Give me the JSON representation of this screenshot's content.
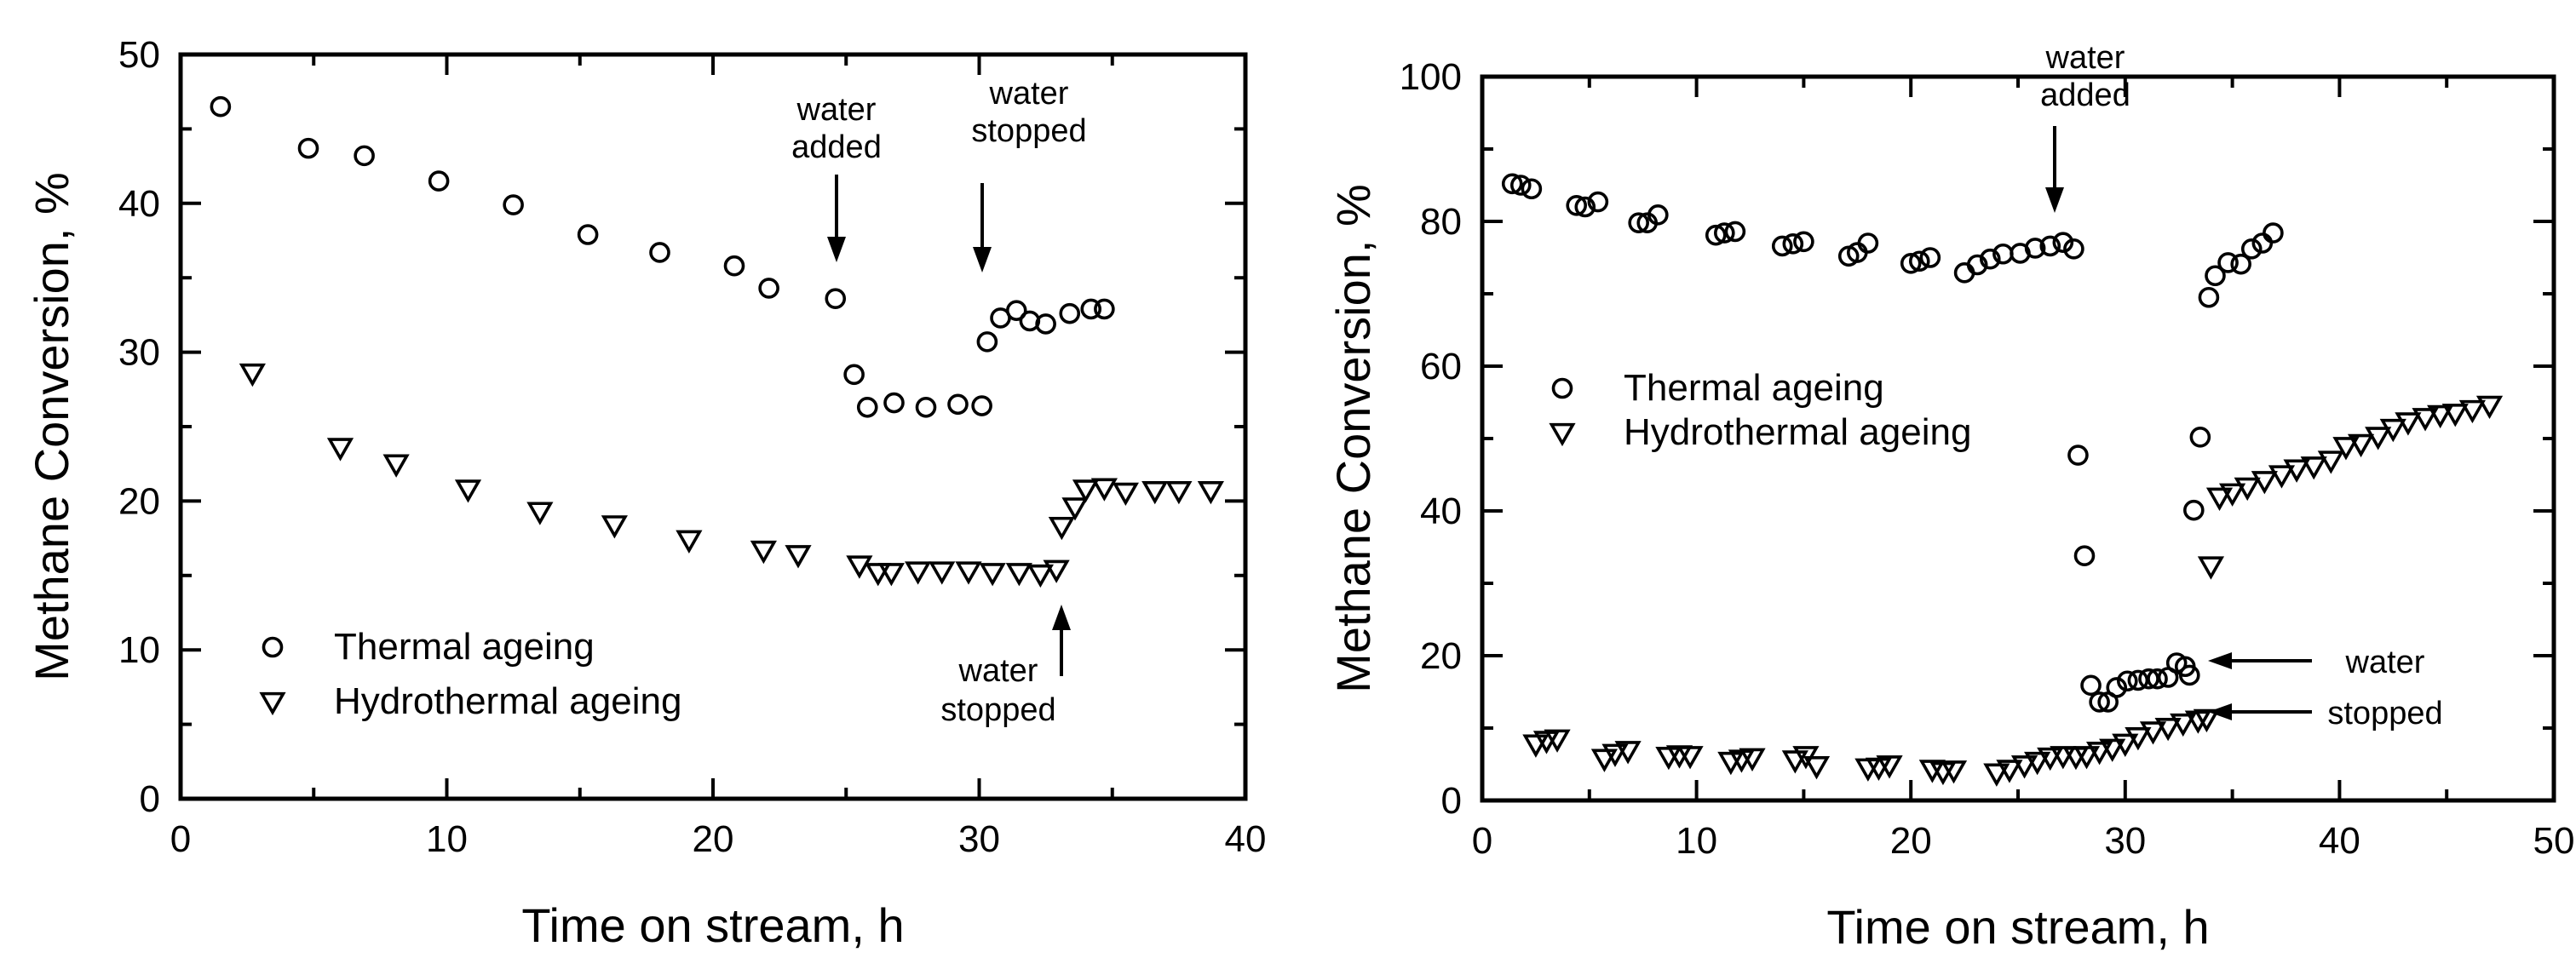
{
  "chart_data": [
    {
      "type": "scatter",
      "xlabel": "Time on stream, h",
      "ylabel": "Methane Conversion, %",
      "xlim": [
        0,
        40
      ],
      "ylim": [
        0,
        50
      ],
      "xticks": [
        0,
        10,
        20,
        30,
        40
      ],
      "yticks": [
        0,
        10,
        20,
        30,
        40,
        50
      ],
      "legend_position": "bottom-left",
      "series": [
        {
          "name": "Thermal ageing",
          "marker": "circle",
          "points": [
            [
              1.5,
              46.5
            ],
            [
              4.8,
              43.7
            ],
            [
              6.9,
              43.2
            ],
            [
              9.7,
              41.5
            ],
            [
              12.5,
              39.9
            ],
            [
              15.3,
              37.9
            ],
            [
              18.0,
              36.7
            ],
            [
              20.8,
              35.8
            ],
            [
              22.1,
              34.3
            ],
            [
              24.6,
              33.6
            ],
            [
              25.3,
              28.5
            ],
            [
              25.8,
              26.3
            ],
            [
              26.8,
              26.6
            ],
            [
              28.0,
              26.3
            ],
            [
              29.2,
              26.5
            ],
            [
              30.1,
              26.4
            ],
            [
              30.3,
              30.7
            ],
            [
              30.8,
              32.3
            ],
            [
              31.4,
              32.8
            ],
            [
              31.9,
              32.1
            ],
            [
              32.5,
              31.9
            ],
            [
              33.4,
              32.6
            ],
            [
              34.2,
              32.9
            ],
            [
              34.7,
              32.9
            ]
          ]
        },
        {
          "name": "Hydrothermal ageing",
          "marker": "triangle-down",
          "points": [
            [
              2.7,
              28.6
            ],
            [
              6.0,
              23.6
            ],
            [
              8.1,
              22.5
            ],
            [
              10.8,
              20.8
            ],
            [
              13.5,
              19.3
            ],
            [
              16.3,
              18.4
            ],
            [
              19.1,
              17.4
            ],
            [
              21.9,
              16.7
            ],
            [
              23.2,
              16.4
            ],
            [
              25.5,
              15.7
            ],
            [
              26.2,
              15.2
            ],
            [
              26.7,
              15.2
            ],
            [
              27.7,
              15.3
            ],
            [
              28.6,
              15.3
            ],
            [
              29.6,
              15.3
            ],
            [
              30.5,
              15.2
            ],
            [
              31.5,
              15.2
            ],
            [
              32.3,
              15.1
            ],
            [
              32.9,
              15.4
            ],
            [
              33.1,
              18.3
            ],
            [
              33.6,
              19.6
            ],
            [
              34.0,
              20.8
            ],
            [
              34.7,
              20.9
            ],
            [
              35.5,
              20.6
            ],
            [
              36.6,
              20.7
            ],
            [
              37.5,
              20.7
            ],
            [
              38.7,
              20.7
            ]
          ]
        }
      ],
      "annotations": [
        {
          "text": "water\nadded",
          "arrow": "down",
          "x": 24.6,
          "y": 33.6
        },
        {
          "text": "water\nstopped",
          "arrow": "down",
          "x": 30.1,
          "y": 26.4
        },
        {
          "text": "water\nstopped",
          "arrow": "up",
          "x": 32.9,
          "y": 15.4
        }
      ]
    },
    {
      "type": "scatter",
      "xlabel": "Time on stream, h",
      "ylabel": "Methane Conversion, %",
      "xlim": [
        0,
        50
      ],
      "ylim": [
        0,
        100
      ],
      "xticks": [
        0,
        10,
        20,
        30,
        40,
        50
      ],
      "yticks": [
        0,
        20,
        40,
        60,
        80,
        100
      ],
      "legend_position": "middle-left",
      "series": [
        {
          "name": "Thermal ageing",
          "marker": "circle",
          "points": [
            [
              1.4,
              85.2
            ],
            [
              1.8,
              85.0
            ],
            [
              2.3,
              84.5
            ],
            [
              4.4,
              82.2
            ],
            [
              4.8,
              82.0
            ],
            [
              5.4,
              82.7
            ],
            [
              7.3,
              79.8
            ],
            [
              7.7,
              79.8
            ],
            [
              8.2,
              80.9
            ],
            [
              10.9,
              78.1
            ],
            [
              11.3,
              78.4
            ],
            [
              11.8,
              78.6
            ],
            [
              14.0,
              76.6
            ],
            [
              14.5,
              76.9
            ],
            [
              15.0,
              77.2
            ],
            [
              17.1,
              75.2
            ],
            [
              17.5,
              75.7
            ],
            [
              18.0,
              77.0
            ],
            [
              20.0,
              74.2
            ],
            [
              20.4,
              74.5
            ],
            [
              20.9,
              75.0
            ],
            [
              22.5,
              72.9
            ],
            [
              23.1,
              74.0
            ],
            [
              23.7,
              74.8
            ],
            [
              24.3,
              75.5
            ],
            [
              25.1,
              75.6
            ],
            [
              25.8,
              76.3
            ],
            [
              26.5,
              76.6
            ],
            [
              27.1,
              77.1
            ],
            [
              27.6,
              76.2
            ],
            [
              27.8,
              47.7
            ],
            [
              28.1,
              33.8
            ],
            [
              28.4,
              15.9
            ],
            [
              28.8,
              13.6
            ],
            [
              29.2,
              13.6
            ],
            [
              29.6,
              15.6
            ],
            [
              30.1,
              16.5
            ],
            [
              30.6,
              16.6
            ],
            [
              31.1,
              16.8
            ],
            [
              31.5,
              16.8
            ],
            [
              32.0,
              17.0
            ],
            [
              32.4,
              19.0
            ],
            [
              32.8,
              18.5
            ],
            [
              33.0,
              17.3
            ],
            [
              33.2,
              40.1
            ],
            [
              33.5,
              50.2
            ],
            [
              33.9,
              69.5
            ],
            [
              34.2,
              72.5
            ],
            [
              34.8,
              74.3
            ],
            [
              35.4,
              74.1
            ],
            [
              35.9,
              76.2
            ],
            [
              36.4,
              77.0
            ],
            [
              36.9,
              78.4
            ]
          ]
        },
        {
          "name": "Hydrothermal ageing",
          "marker": "triangle-down",
          "points": [
            [
              2.5,
              7.8
            ],
            [
              3.0,
              8.3
            ],
            [
              3.5,
              8.5
            ],
            [
              5.7,
              5.8
            ],
            [
              6.2,
              6.5
            ],
            [
              6.8,
              6.9
            ],
            [
              8.7,
              6.1
            ],
            [
              9.2,
              6.3
            ],
            [
              9.7,
              6.2
            ],
            [
              11.6,
              5.4
            ],
            [
              12.1,
              5.7
            ],
            [
              12.6,
              5.9
            ],
            [
              14.6,
              5.6
            ],
            [
              15.1,
              6.2
            ],
            [
              15.6,
              4.8
            ],
            [
              18.0,
              4.5
            ],
            [
              18.5,
              4.6
            ],
            [
              19.0,
              4.9
            ],
            [
              21.0,
              4.3
            ],
            [
              21.5,
              4.0
            ],
            [
              22.0,
              4.2
            ],
            [
              24.0,
              3.8
            ],
            [
              24.6,
              4.3
            ],
            [
              25.3,
              4.9
            ],
            [
              25.9,
              5.4
            ],
            [
              26.5,
              6.0
            ],
            [
              27.1,
              6.2
            ],
            [
              27.7,
              6.1
            ],
            [
              28.2,
              6.2
            ],
            [
              28.8,
              6.8
            ],
            [
              29.4,
              7.2
            ],
            [
              30.0,
              7.9
            ],
            [
              30.6,
              8.8
            ],
            [
              31.3,
              9.6
            ],
            [
              32.0,
              10.1
            ],
            [
              32.7,
              10.7
            ],
            [
              33.4,
              11.1
            ],
            [
              33.8,
              11.3
            ],
            [
              34.0,
              32.4
            ],
            [
              34.4,
              41.9
            ],
            [
              35.0,
              42.5
            ],
            [
              35.7,
              43.3
            ],
            [
              36.5,
              44.2
            ],
            [
              37.3,
              45.0
            ],
            [
              38.0,
              45.8
            ],
            [
              38.8,
              46.2
            ],
            [
              39.6,
              47.0
            ],
            [
              40.3,
              48.9
            ],
            [
              41.0,
              49.3
            ],
            [
              41.8,
              50.3
            ],
            [
              42.5,
              51.4
            ],
            [
              43.2,
              52.3
            ],
            [
              44.0,
              52.9
            ],
            [
              44.7,
              53.3
            ],
            [
              45.4,
              53.5
            ],
            [
              46.2,
              54.0
            ],
            [
              47.0,
              54.6
            ]
          ]
        }
      ],
      "annotations": [
        {
          "text": "water\nadded",
          "arrow": "down",
          "x": 27.6,
          "y": 76.2
        },
        {
          "text": "water\nstopped",
          "arrow": "left",
          "x": 34.0,
          "y": 19.0
        },
        {
          "text": "water\nstopped",
          "arrow": "left",
          "x": 34.0,
          "y": 11.8
        }
      ]
    }
  ]
}
